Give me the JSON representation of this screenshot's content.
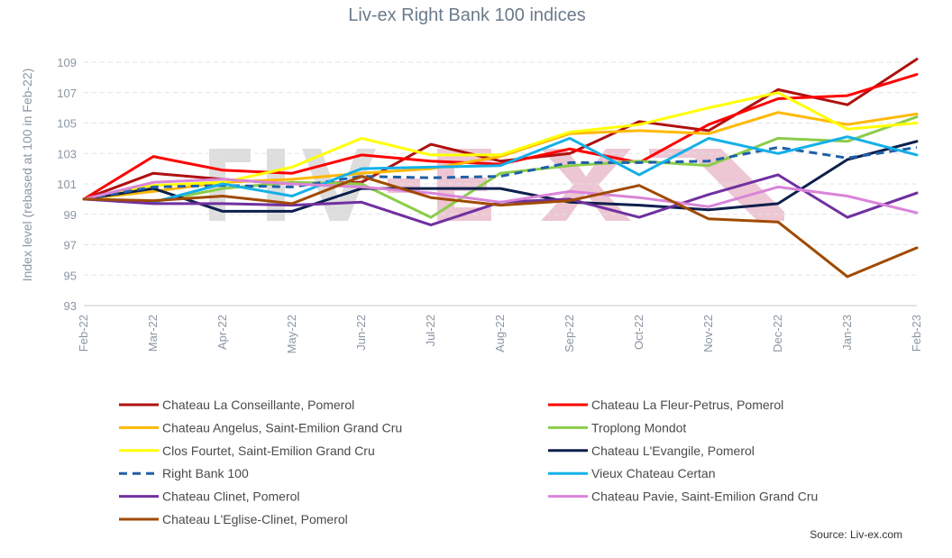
{
  "chart_data": {
    "type": "line",
    "title": "Liv-ex Right Bank 100 indices",
    "ylabel": "Index level (rebased at 100 in Feb-22)",
    "xlabel": "",
    "ylim": [
      93,
      109
    ],
    "yticks": [
      93,
      95,
      97,
      99,
      101,
      103,
      105,
      107,
      109
    ],
    "grid": true,
    "legend_position": "bottom",
    "source": "Source: Liv-ex.com",
    "watermark_text": "LIV-EX",
    "categories": [
      "Feb-22",
      "Mar-22",
      "Apr-22",
      "May-22",
      "Jun-22",
      "Jul-22",
      "Aug-22",
      "Sep-22",
      "Oct-22",
      "Nov-22",
      "Dec-22",
      "Jan-23",
      "Feb-23"
    ],
    "series": [
      {
        "name": "Chateau La Conseillante, Pomerol",
        "color": "#b01010",
        "dashed": false,
        "values": [
          100,
          101.7,
          101.3,
          101.0,
          101.1,
          103.6,
          102.5,
          103.0,
          105.1,
          104.5,
          107.2,
          106.2,
          109.2
        ]
      },
      {
        "name": "Chateau La Fleur-Petrus, Pomerol",
        "color": "#ff0000",
        "dashed": false,
        "values": [
          100,
          102.8,
          101.9,
          101.7,
          102.9,
          102.5,
          102.3,
          103.3,
          102.4,
          104.9,
          106.6,
          106.8,
          108.2
        ]
      },
      {
        "name": "Chateau Angelus, Saint-Emilion Grand Cru",
        "color": "#ffb800",
        "dashed": false,
        "values": [
          100,
          100.5,
          101.1,
          101.3,
          101.7,
          102.0,
          102.8,
          104.3,
          104.5,
          104.3,
          105.7,
          104.9,
          105.6
        ]
      },
      {
        "name": "Troplong Mondot",
        "color": "#8ccc4a",
        "dashed": false,
        "values": [
          100,
          99.8,
          100.7,
          101.1,
          101.0,
          98.8,
          101.7,
          102.2,
          102.5,
          102.2,
          104.0,
          103.8,
          105.4
        ]
      },
      {
        "name": "Clos Fourtet, Saint-Emilion Grand Cru",
        "color": "#ffff00",
        "dashed": false,
        "values": [
          100,
          100.9,
          101.1,
          102.1,
          104.0,
          102.9,
          102.9,
          104.4,
          104.9,
          106.0,
          107.0,
          104.6,
          105.0
        ]
      },
      {
        "name": "Chateau L'Evangile, Pomerol",
        "color": "#0d1f4d",
        "dashed": false,
        "values": [
          100,
          100.7,
          99.2,
          99.2,
          100.7,
          100.7,
          100.7,
          99.8,
          99.6,
          99.3,
          99.7,
          102.6,
          103.8
        ]
      },
      {
        "name": "Right Bank 100",
        "color": "#1f5fa8",
        "dashed": true,
        "values": [
          100,
          100.8,
          100.9,
          100.8,
          101.5,
          101.4,
          101.5,
          102.4,
          102.4,
          102.5,
          103.4,
          102.7,
          103.4
        ]
      },
      {
        "name": "Vieux Chateau Certan",
        "color": "#14b0e8",
        "dashed": false,
        "values": [
          100,
          99.8,
          101.0,
          100.2,
          102.0,
          102.1,
          102.2,
          104.0,
          101.6,
          104.0,
          103.0,
          104.1,
          102.9
        ]
      },
      {
        "name": "Chateau Clinet, Pomerol",
        "color": "#7030a0",
        "dashed": false,
        "values": [
          100,
          99.7,
          99.7,
          99.6,
          99.8,
          98.3,
          99.8,
          100.0,
          98.8,
          100.3,
          101.6,
          98.8,
          100.4
        ]
      },
      {
        "name": "Chateau Pavie, Saint-Emilion Grand Cru",
        "color": "#d985d9",
        "dashed": false,
        "values": [
          100,
          101.1,
          101.3,
          101.0,
          100.8,
          100.4,
          99.8,
          100.5,
          100.1,
          99.5,
          100.8,
          100.2,
          99.1
        ]
      },
      {
        "name": "Chateau L'Eglise-Clinet, Pomerol",
        "color": "#a04a00",
        "dashed": false,
        "values": [
          100,
          99.9,
          100.2,
          99.7,
          101.5,
          100.1,
          99.6,
          99.9,
          100.9,
          98.7,
          98.5,
          94.9,
          96.8
        ]
      }
    ]
  }
}
